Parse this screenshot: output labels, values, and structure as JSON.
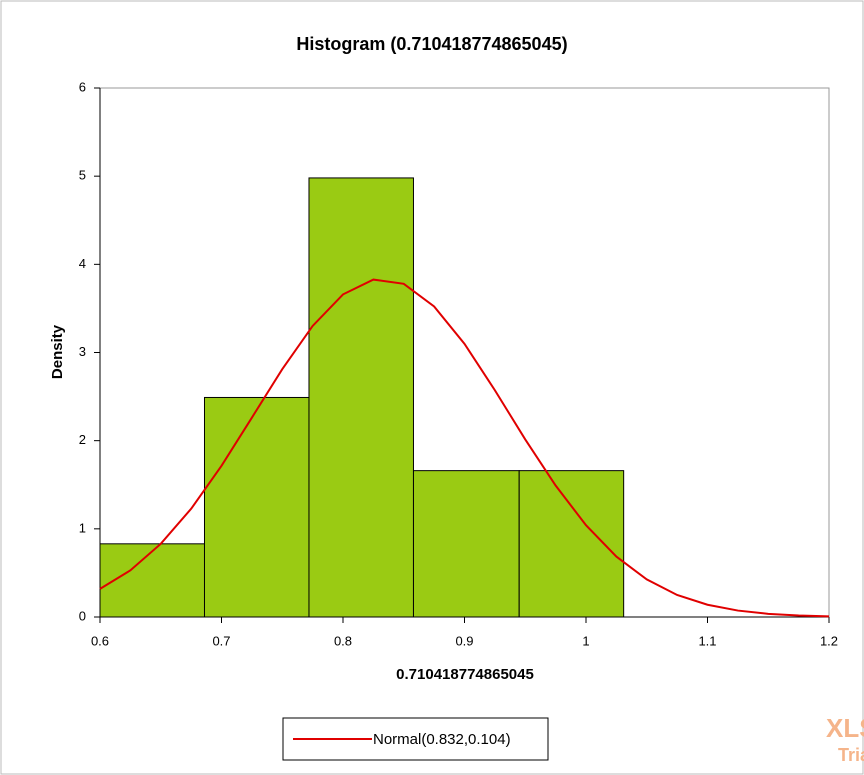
{
  "chart_data": {
    "type": "histogram",
    "title": "Histogram  (0.710418774865045)",
    "xlabel": "0.710418774865045",
    "ylabel": "Density",
    "bins": [
      0.6,
      0.686,
      0.772,
      0.858,
      0.945,
      1.031
    ],
    "values": [
      0.83,
      2.49,
      4.98,
      1.66,
      1.66
    ],
    "color": "#9acb13",
    "xlim": [
      0.6,
      1.2
    ],
    "xticks": [
      0.6,
      0.7,
      0.8,
      0.9,
      1,
      1.1,
      1.2
    ],
    "ylim": [
      0,
      6
    ],
    "yticks": [
      0,
      1,
      2,
      3,
      4,
      5,
      6
    ],
    "curve": {
      "name": "Normal(0.832,0.104)",
      "color": "#e00000",
      "x": [
        0.6,
        0.625,
        0.65,
        0.675,
        0.7,
        0.725,
        0.75,
        0.775,
        0.8,
        0.825,
        0.85,
        0.875,
        0.9,
        0.925,
        0.95,
        0.975,
        1,
        1.025,
        1.05,
        1.075,
        1.1,
        1.125,
        1.15,
        1.175,
        1.2
      ],
      "values": [
        0.319,
        0.529,
        0.83,
        1.227,
        1.715,
        2.261,
        2.811,
        3.301,
        3.659,
        3.827,
        3.779,
        3.522,
        3.098,
        2.572,
        2.014,
        1.491,
        1.041,
        0.685,
        0.426,
        0.25,
        0.139,
        0.073,
        0.036,
        0.017,
        0.007
      ]
    },
    "watermark": [
      "XLSTAT",
      "Trial"
    ]
  }
}
